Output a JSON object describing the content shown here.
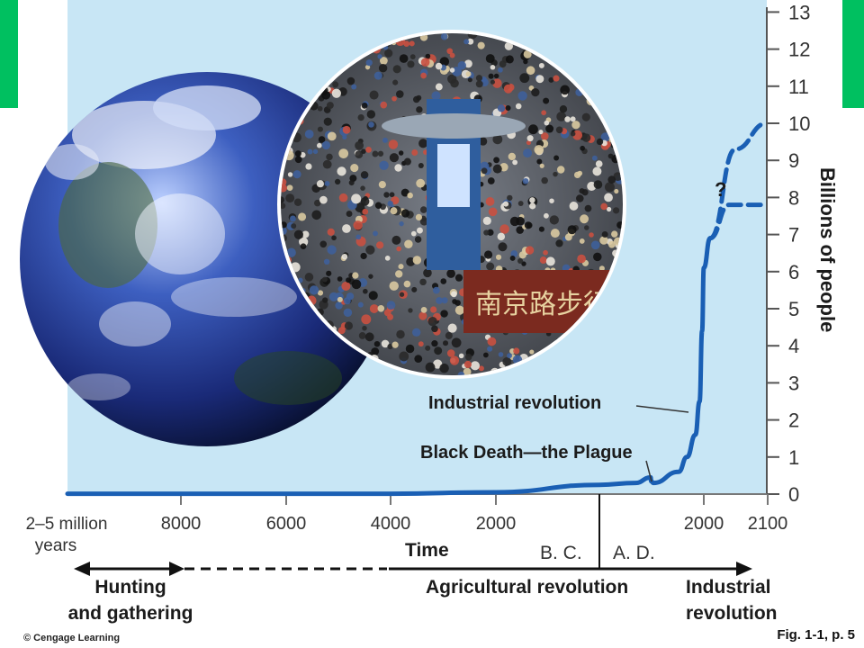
{
  "slide": {
    "accent_color": "#00c060",
    "plot_background": "#c8e6f5",
    "curve_color": "#1a5fb4",
    "footer_left": "© Cengage Learning",
    "footer_right": "Fig. 1-1, p. 5"
  },
  "photos": {
    "globe_icon": "earth-globe-image",
    "crowd_icon": "crowd-photo-image",
    "sign_text": "南京路步行"
  },
  "chart_data": {
    "type": "line",
    "ylabel": "Billions of people",
    "xlabel": "Time",
    "ylim": [
      0,
      13
    ],
    "y_ticks": [
      "0",
      "1",
      "2",
      "3",
      "4",
      "5",
      "6",
      "7",
      "8",
      "9",
      "10",
      "11",
      "12",
      "13"
    ],
    "x_ticks": [
      "2–5 million years",
      "8000",
      "6000",
      "4000",
      "2000",
      "2000",
      "2100"
    ],
    "era_labels": [
      "B. C.",
      "A. D."
    ],
    "question_mark": "?",
    "series": [
      {
        "style": "solid",
        "points": [
          [
            "2–5 million years",
            0.01
          ],
          [
            "8000 BC",
            0.01
          ],
          [
            "4000 BC",
            0.01
          ],
          [
            "2000 BC",
            0.05
          ],
          [
            "1 AD",
            0.25
          ],
          [
            "1000 AD",
            0.3
          ],
          [
            "1340 AD",
            0.45
          ],
          [
            "1350 AD",
            0.35
          ],
          [
            "1400 AD",
            0.3
          ],
          [
            "1700 AD",
            0.6
          ],
          [
            "1800 AD",
            1.0
          ],
          [
            "1900 AD",
            1.6
          ],
          [
            "1950 AD",
            2.5
          ],
          [
            "1980 AD",
            4.4
          ],
          [
            "2000 AD",
            6.1
          ],
          [
            "2010 AD",
            6.9
          ]
        ]
      },
      {
        "style": "dashed",
        "points": [
          [
            "2010 AD",
            6.9
          ],
          [
            "2050 AD",
            9.3
          ],
          [
            "2100 AD",
            10.0
          ]
        ]
      },
      {
        "style": "dashed",
        "points": [
          [
            "2010 AD",
            6.9
          ],
          [
            "2040 AD",
            7.8
          ],
          [
            "2100 AD",
            7.8
          ]
        ]
      }
    ],
    "annotations": [
      {
        "text": "Industrial revolution",
        "at": "1800 AD"
      },
      {
        "text": "Black Death—the Plague",
        "at": "1350 AD"
      }
    ],
    "timeline": {
      "labels": [
        {
          "text": "Hunting\nand gathering"
        },
        {
          "text": "Agricultural revolution"
        },
        {
          "text": "Industrial\nrevolution"
        }
      ]
    }
  }
}
